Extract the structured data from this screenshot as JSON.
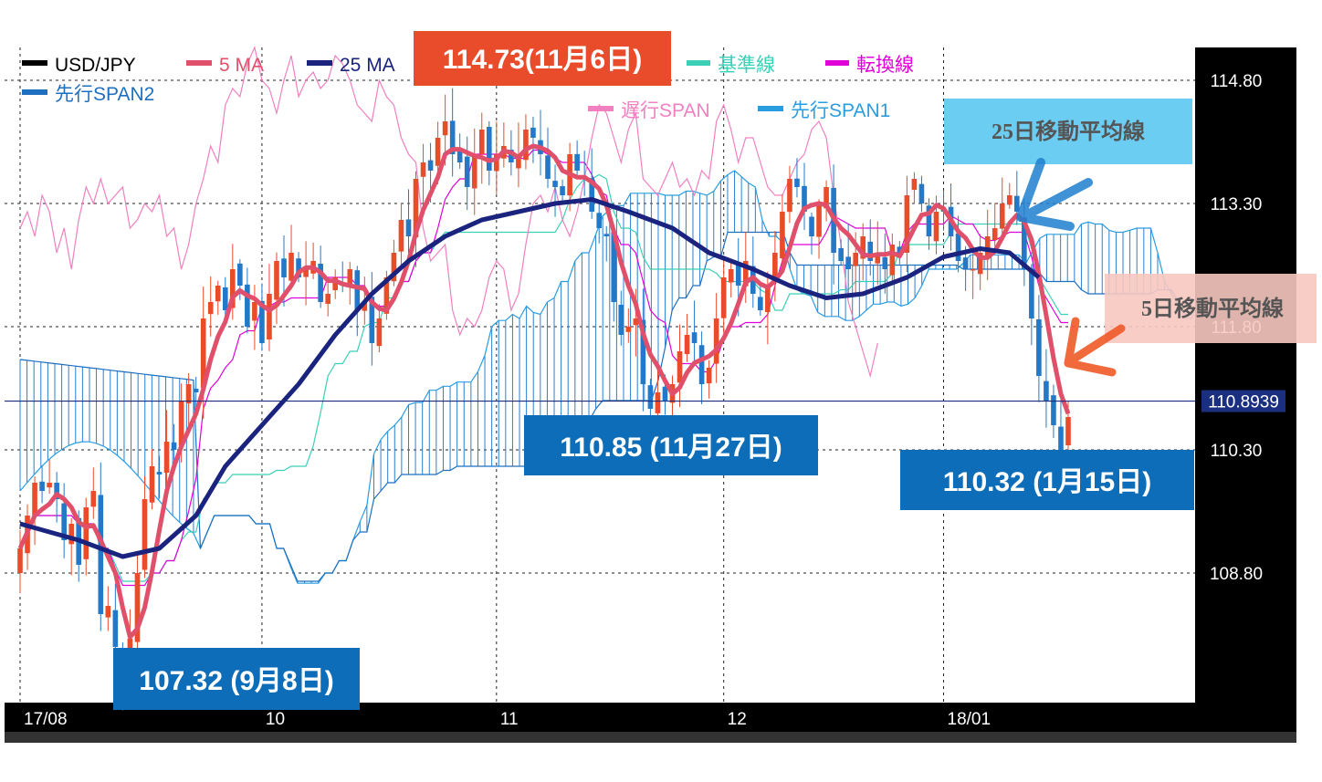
{
  "chart_data": {
    "type": "candlestick",
    "symbol": "USD/JPY",
    "ylim": [
      107.1,
      115.2
    ],
    "y_ticks": [
      "114.80",
      "113.30",
      "111.80",
      "110.30",
      "108.80"
    ],
    "current_price_label": "110.8939",
    "current_price": 110.8939,
    "x_ticks": [
      {
        "label": "17/08",
        "index": 0
      },
      {
        "label": "10",
        "index": 33
      },
      {
        "label": "11",
        "index": 65
      },
      {
        "label": "12",
        "index": 96
      },
      {
        "label": "18/01",
        "index": 126
      }
    ],
    "legend": [
      {
        "name": "USD/JPY",
        "color": "#000000"
      },
      {
        "name": "5 MA",
        "color": "#e0506a"
      },
      {
        "name": "25 MA",
        "color": "#1a237e"
      },
      {
        "name": "基準線",
        "color": "#3ccfb8"
      },
      {
        "name": "転換線",
        "color": "#e000d8"
      },
      {
        "name": "先行SPAN2",
        "color": "#1f6fc0"
      },
      {
        "name": "遅行SPAN",
        "color": "#f080c0"
      },
      {
        "name": "先行SPAN1",
        "color": "#2a9de0"
      }
    ],
    "candles_close": [
      109.1,
      109.5,
      109.9,
      109.8,
      109.9,
      109.7,
      109.2,
      109.4,
      108.9,
      109.6,
      109.8,
      108.3,
      108.4,
      107.9,
      107.5,
      108.0,
      108.8,
      109.7,
      110.1,
      110.0,
      110.4,
      110.3,
      110.9,
      111.1,
      111.0,
      111.9,
      112.1,
      112.3,
      112.0,
      112.5,
      112.3,
      111.8,
      112.1,
      111.6,
      112.2,
      112.6,
      112.4,
      112.7,
      112.4,
      112.5,
      112.6,
      112.1,
      112.2,
      112.4,
      112.3,
      112.5,
      112.0,
      112.1,
      111.6,
      111.9,
      112.4,
      112.7,
      113.1,
      112.9,
      113.6,
      113.8,
      113.7,
      114.1,
      114.3,
      113.9,
      113.8,
      113.5,
      113.9,
      114.2,
      113.7,
      113.9,
      114.0,
      113.8,
      113.9,
      114.2,
      114.1,
      113.9,
      113.6,
      113.5,
      113.4,
      113.9,
      113.7,
      113.6,
      113.2,
      113.0,
      112.9,
      112.1,
      111.7,
      111.8,
      111.9,
      111.1,
      110.8,
      111.0,
      110.9,
      111.1,
      111.5,
      111.7,
      111.6,
      111.1,
      111.3,
      111.9,
      112.4,
      112.5,
      112.3,
      112.6,
      112.2,
      112.0,
      112.3,
      112.7,
      113.2,
      113.6,
      113.5,
      113.2,
      112.9,
      113.3,
      113.5,
      112.7,
      112.6,
      112.5,
      112.7,
      112.9,
      112.6,
      112.7,
      112.5,
      112.8,
      112.7,
      113.4,
      113.6,
      113.3,
      112.9,
      113.2,
      113.2,
      112.9,
      112.6,
      112.5,
      112.5,
      112.7,
      112.9,
      113.0,
      113.3,
      113.4,
      113.2,
      112.5,
      111.9,
      111.2,
      110.9,
      110.6,
      110.3,
      110.7
    ],
    "ma25_points": [
      [
        0,
        109.4
      ],
      [
        8,
        109.2
      ],
      [
        14,
        109.0
      ],
      [
        19,
        109.1
      ],
      [
        24,
        109.5
      ],
      [
        28,
        110.1
      ],
      [
        33,
        110.6
      ],
      [
        38,
        111.1
      ],
      [
        43,
        111.7
      ],
      [
        48,
        112.2
      ],
      [
        53,
        112.6
      ],
      [
        58,
        112.9
      ],
      [
        63,
        113.1
      ],
      [
        68,
        113.2
      ],
      [
        73,
        113.3
      ],
      [
        78,
        113.35
      ],
      [
        83,
        113.2
      ],
      [
        89,
        113.0
      ],
      [
        94,
        112.7
      ],
      [
        100,
        112.5
      ],
      [
        105,
        112.3
      ],
      [
        110,
        112.15
      ],
      [
        115,
        112.2
      ],
      [
        121,
        112.4
      ],
      [
        126,
        112.65
      ],
      [
        131,
        112.75
      ],
      [
        135,
        112.7
      ],
      [
        139,
        112.4
      ]
    ],
    "annotations": [
      {
        "text": "114.73(11月6日)",
        "style": "red"
      },
      {
        "text": "107.32 (9月8日)",
        "style": "blue"
      },
      {
        "text": "110.85 (11月27日)",
        "style": "blue"
      },
      {
        "text": "110.32 (1月15日)",
        "style": "blue"
      }
    ],
    "notes": [
      {
        "text": "25日移動平均線",
        "color": "#5bc8f0"
      },
      {
        "text": "5日移動平均線",
        "color": "#f7c8c0"
      }
    ],
    "grid": true
  },
  "colors": {
    "up": "#e94c2a",
    "down": "#2478c8",
    "frame": "#000000",
    "red_box": "#e94c2a",
    "blue_box": "#0d6db8"
  }
}
